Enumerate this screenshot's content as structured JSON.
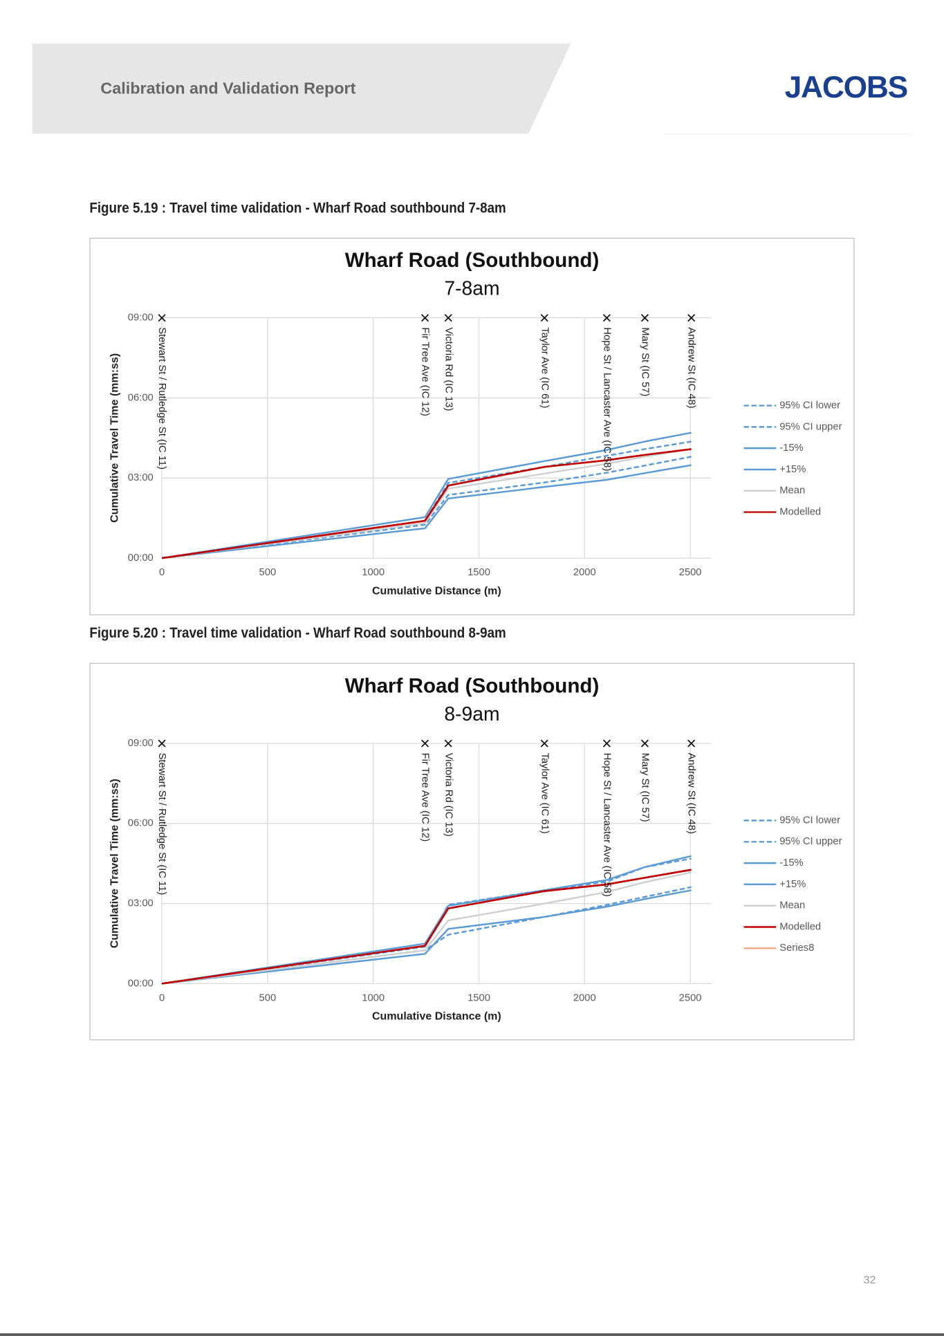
{
  "document": {
    "header_title": "Calibration and Validation Report",
    "logo": "JACOBS",
    "captions": [
      "Figure 5.19 : Travel time validation - Wharf Road southbound 7-8am",
      "Figure 5.20 : Travel time validation - Wharf Road southbound 8-9am"
    ],
    "page_number": "32"
  },
  "chart_data": [
    {
      "type": "line",
      "title": "Wharf Road (Southbound)",
      "subtitle": "7-8am",
      "x_label": "Cumulative Distance (m)",
      "y_label": "Cumulative Travel Time (mm:ss)",
      "x": [
        0,
        1245,
        1355,
        1810,
        2105,
        2285,
        2505
      ],
      "xlim": [
        0,
        2600
      ],
      "xticks": [
        0,
        500,
        1000,
        1500,
        2000,
        2500
      ],
      "ylim": [
        0,
        540
      ],
      "yticks": [
        {
          "value": 0,
          "label": "00:00"
        },
        {
          "value": 180,
          "label": "03:00"
        },
        {
          "value": 360,
          "label": "06:00"
        },
        {
          "value": 540,
          "label": "09:00"
        }
      ],
      "grid": true,
      "legend": "right",
      "annotations": [
        {
          "x": 0,
          "label": "Stewart St / Rutledge St (IC 11)"
        },
        {
          "x": 1245,
          "label": "Fir Tree Ave (IC 12)"
        },
        {
          "x": 1355,
          "label": "Victoria Rd (IC 13)"
        },
        {
          "x": 1810,
          "label": "Taylor Ave (IC 61)"
        },
        {
          "x": 2105,
          "label": "Hope St / Lancaster Ave (IC 58)"
        },
        {
          "x": 2285,
          "label": "Mary St (IC 57)"
        },
        {
          "x": 2505,
          "label": "Andrew St (IC 48)"
        }
      ],
      "series": [
        {
          "name": "95% CI lower",
          "color": "#5b9bd5",
          "dash": true,
          "values": [
            0,
            75,
            142,
            170,
            192,
            208,
            228
          ]
        },
        {
          "name": "95% CI upper",
          "color": "#5b9bd5",
          "dash": true,
          "values": [
            0,
            84,
            169,
            205,
            230,
            245,
            262
          ]
        },
        {
          "name": "-15%",
          "color": "#5b9bd5",
          "dash": false,
          "values": [
            0,
            67,
            134,
            160,
            176,
            191,
            209
          ]
        },
        {
          "name": "+15%",
          "color": "#5b9bd5",
          "dash": false,
          "values": [
            0,
            92,
            178,
            218,
            243,
            262,
            282
          ]
        },
        {
          "name": "Mean",
          "color": "#d0d0d0",
          "dash": false,
          "values": [
            0,
            79,
            156,
            190,
            212,
            228,
            245
          ]
        },
        {
          "name": "Modelled",
          "color": "#c00000",
          "dash": false,
          "values": [
            0,
            84,
            163,
            205,
            220,
            232,
            245
          ]
        }
      ]
    },
    {
      "type": "line",
      "title": "Wharf Road (Southbound)",
      "subtitle": "8-9am",
      "x_label": "Cumulative Distance (m)",
      "y_label": "Cumulative Travel Time (mm:ss)",
      "x": [
        0,
        1245,
        1355,
        1810,
        2105,
        2285,
        2505
      ],
      "xlim": [
        0,
        2600
      ],
      "xticks": [
        0,
        500,
        1000,
        1500,
        2000,
        2500
      ],
      "ylim": [
        0,
        540
      ],
      "yticks": [
        {
          "value": 0,
          "label": "00:00"
        },
        {
          "value": 180,
          "label": "03:00"
        },
        {
          "value": 360,
          "label": "06:00"
        },
        {
          "value": 540,
          "label": "09:00"
        }
      ],
      "grid": true,
      "legend": "right",
      "annotations": [
        {
          "x": 0,
          "label": "Stewart St / Rutledge St (IC 11)"
        },
        {
          "x": 1245,
          "label": "Fir Tree Ave (IC 12)"
        },
        {
          "x": 1355,
          "label": "Victoria Rd (IC 13)"
        },
        {
          "x": 1810,
          "label": "Taylor Ave (IC 61)"
        },
        {
          "x": 2105,
          "label": "Hope St / Lancaster Ave (IC 58)"
        },
        {
          "x": 2285,
          "label": "Mary St (IC 57)"
        },
        {
          "x": 2505,
          "label": "Andrew St (IC 48)"
        }
      ],
      "series": [
        {
          "name": "95% CI lower",
          "color": "#5b9bd5",
          "dash": true,
          "values": [
            0,
            75,
            110,
            150,
            177,
            195,
            217
          ]
        },
        {
          "name": "95% CI upper",
          "color": "#5b9bd5",
          "dash": true,
          "values": [
            0,
            83,
            177,
            210,
            229,
            262,
            281
          ]
        },
        {
          "name": "-15%",
          "color": "#5b9bd5",
          "dash": false,
          "values": [
            0,
            67,
            123,
            150,
            173,
            190,
            210
          ]
        },
        {
          "name": "+15%",
          "color": "#5b9bd5",
          "dash": false,
          "values": [
            0,
            90,
            175,
            210,
            233,
            262,
            287
          ]
        },
        {
          "name": "Mean",
          "color": "#d0d0d0",
          "dash": false,
          "values": [
            0,
            75,
            142,
            180,
            206,
            228,
            250
          ]
        },
        {
          "name": "Modelled",
          "color": "#c00000",
          "dash": false,
          "values": [
            0,
            85,
            169,
            208,
            223,
            238,
            256
          ]
        },
        {
          "name": "Series8",
          "color": "#f4a582",
          "dash": false,
          "values": [
            null,
            null,
            null,
            null,
            null,
            null,
            null
          ]
        }
      ]
    }
  ]
}
